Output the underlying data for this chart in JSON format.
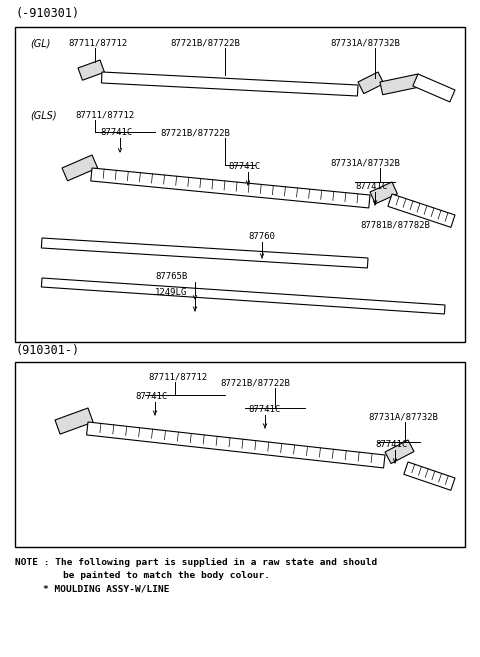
{
  "bg_color": "#ffffff",
  "header1": "(-910301)",
  "header2": "(910301-)",
  "note_line1": "NOTE : The following part is supplied in a raw state and should",
  "note_line2": "be painted to match the body colour.",
  "note_line3": "* MOULDING ASSY-W/LINE",
  "figw": 4.8,
  "figh": 6.57,
  "dpi": 100
}
